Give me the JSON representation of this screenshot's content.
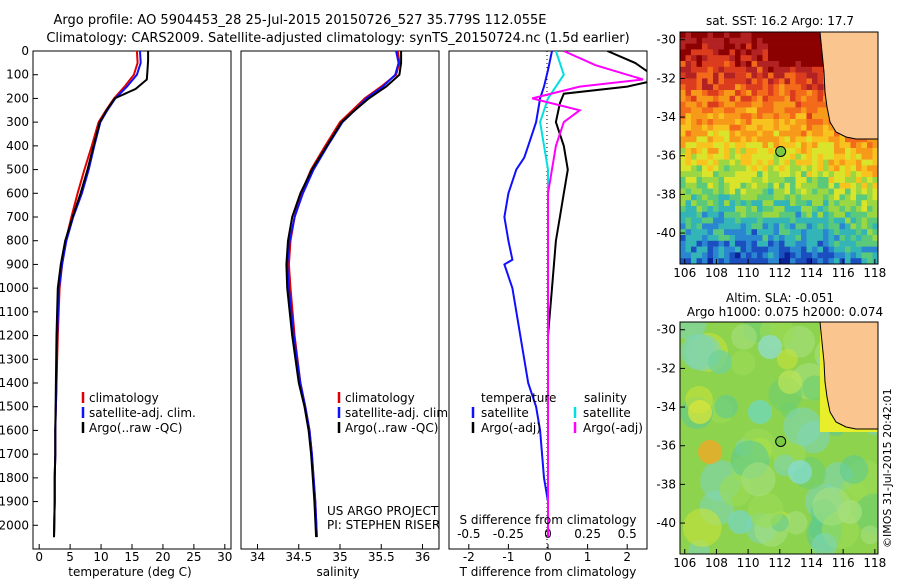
{
  "title": {
    "line1": "Argo profile: AO 5904453_28 25-Jul-2015 20150726_527 35.779S 112.055E",
    "line2": "Climatology: CARS2009. Satellite-adjusted climatology: synTS_20150724.nc (1.5d earlier)"
  },
  "chart_data": [
    {
      "type": "line",
      "xlabel": "temperature (deg C)",
      "ylabel": "",
      "xlim": [
        -1,
        31
      ],
      "ylim": [
        0,
        2100
      ],
      "y_reversed": true,
      "xticks": [
        "0",
        "5",
        "10",
        "15",
        "20",
        "25",
        "30"
      ],
      "yticks": [
        "0",
        "100",
        "200",
        "300",
        "400",
        "500",
        "600",
        "700",
        "800",
        "900",
        "1000",
        "1100",
        "1200",
        "1300",
        "1400",
        "1500",
        "1600",
        "1700",
        "1800",
        "1900",
        "2000"
      ],
      "legend": {
        "position": "lower-center",
        "entries": [
          "climatology",
          "satellite-adj. clim.",
          "Argo(..raw -QC)"
        ]
      },
      "series": [
        {
          "name": "climatology",
          "color": "#e00000",
          "x": [
            15.8,
            15.9,
            15.3,
            13.8,
            12.1,
            10.8,
            9.6,
            8.5,
            7.3,
            6.2,
            5.2,
            4.3,
            3.7,
            3.3,
            3.0,
            2.8,
            2.7,
            2.6,
            2.6,
            2.5,
            2.5,
            2.4
          ],
          "y": [
            0,
            50,
            100,
            150,
            200,
            250,
            300,
            400,
            500,
            600,
            700,
            800,
            900,
            1000,
            1200,
            1400,
            1500,
            1600,
            1700,
            1800,
            1900,
            2050
          ]
        },
        {
          "name": "satellite-adj. clim.",
          "color": "#1010ff",
          "x": [
            16.3,
            16.4,
            15.8,
            14.2,
            12.3,
            11.0,
            9.9,
            8.9,
            8.0,
            6.9,
            5.5,
            4.4,
            3.7,
            3.2,
            2.9,
            2.8,
            2.7,
            2.6,
            2.6,
            2.5,
            2.5,
            2.4
          ],
          "y": [
            0,
            50,
            100,
            150,
            200,
            250,
            300,
            400,
            500,
            600,
            700,
            800,
            900,
            1000,
            1200,
            1400,
            1500,
            1600,
            1700,
            1800,
            1900,
            2050
          ]
        },
        {
          "name": "Argo(..raw -QC)",
          "color": "#000000",
          "x": [
            17.6,
            17.6,
            17.5,
            17.4,
            15.6,
            12.2,
            10.9,
            9.8,
            8.8,
            7.8,
            6.7,
            5.4,
            4.2,
            3.5,
            3.0,
            2.8,
            2.7,
            2.6,
            2.6,
            2.5,
            2.5,
            2.4
          ],
          "y": [
            0,
            40,
            80,
            120,
            160,
            200,
            250,
            300,
            400,
            500,
            600,
            700,
            800,
            900,
            1000,
            1200,
            1400,
            1600,
            1700,
            1800,
            1900,
            2050
          ]
        }
      ]
    },
    {
      "type": "line",
      "xlabel": "salinity",
      "xlim": [
        33.8,
        36.2
      ],
      "ylim": [
        0,
        2100
      ],
      "y_reversed": true,
      "xticks": [
        "34",
        "34.5",
        "35",
        "35.5",
        "36"
      ],
      "legend": {
        "position": "lower-center",
        "entries": [
          "climatology",
          "satellite-adj. clim.",
          "Argo(..raw -QC)"
        ]
      },
      "annotations": [
        "US ARGO PROJECT",
        "PI: STEPHEN RISER"
      ],
      "series": [
        {
          "name": "climatology",
          "color": "#e00000",
          "x": [
            35.7,
            35.72,
            35.68,
            35.5,
            35.3,
            35.15,
            35.0,
            34.82,
            34.65,
            34.53,
            34.45,
            34.4,
            34.38,
            34.4,
            34.45,
            34.52,
            34.58,
            34.63,
            34.66,
            34.68,
            34.7,
            34.72
          ],
          "y": [
            0,
            50,
            100,
            150,
            200,
            250,
            300,
            400,
            500,
            600,
            700,
            800,
            900,
            1000,
            1200,
            1400,
            1500,
            1600,
            1700,
            1800,
            1900,
            2050
          ]
        },
        {
          "name": "satellite-adj. clim.",
          "color": "#1010ff",
          "x": [
            35.68,
            35.71,
            35.67,
            35.52,
            35.32,
            35.18,
            35.03,
            34.85,
            34.68,
            34.55,
            34.45,
            34.39,
            34.36,
            34.38,
            34.44,
            34.52,
            34.58,
            34.63,
            34.66,
            34.68,
            34.7,
            34.72
          ],
          "y": [
            0,
            50,
            100,
            150,
            200,
            250,
            300,
            400,
            500,
            600,
            700,
            800,
            900,
            1000,
            1200,
            1400,
            1500,
            1600,
            1700,
            1800,
            1900,
            2050
          ]
        },
        {
          "name": "Argo(..raw -QC)",
          "color": "#000000",
          "x": [
            35.74,
            35.74,
            35.72,
            35.56,
            35.35,
            35.18,
            35.02,
            34.84,
            34.66,
            34.52,
            34.42,
            34.37,
            34.35,
            34.36,
            34.42,
            34.5,
            34.57,
            34.62,
            34.65,
            34.67,
            34.69,
            34.71
          ],
          "y": [
            0,
            50,
            100,
            150,
            200,
            250,
            300,
            400,
            500,
            600,
            700,
            800,
            900,
            1000,
            1200,
            1400,
            1500,
            1600,
            1700,
            1800,
            1900,
            2050
          ]
        }
      ]
    },
    {
      "type": "line",
      "xlabel": "T difference from climatology",
      "xlabel_top": "S difference from climatology",
      "xlim": [
        -2.5,
        2.5
      ],
      "ylim": [
        0,
        2100
      ],
      "y_reversed": true,
      "xticks_T": [
        "-2",
        "-1",
        "0",
        "1",
        "2"
      ],
      "xticks_S": [
        "-0.5",
        "-0.25",
        "0",
        "0.25",
        "0.5"
      ],
      "legend": {
        "position": "lower-center",
        "headers": [
          "temperature",
          "salinity"
        ],
        "entries": [
          "satellite",
          "Argo(-adj)",
          "satellite",
          "Argo(-adj)"
        ]
      },
      "series": [
        {
          "name": "satellite",
          "group": "temperature",
          "color": "#1010ff",
          "x": [
            0.1,
            0.0,
            -0.1,
            -0.2,
            -0.3,
            -0.5,
            -0.6,
            -0.8,
            -1.0,
            -1.1,
            -1.0,
            -0.9,
            -1.1,
            -0.9,
            -0.7,
            -0.5,
            -0.3,
            -0.2,
            -0.1,
            0.0,
            0.0
          ],
          "y": [
            0,
            80,
            150,
            200,
            300,
            400,
            450,
            500,
            600,
            700,
            800,
            880,
            900,
            1000,
            1200,
            1400,
            1500,
            1600,
            1800,
            1900,
            2050
          ]
        },
        {
          "name": "Argo(-adj)",
          "group": "temperature",
          "color": "#000000",
          "x": [
            1.5,
            2.2,
            2.8,
            2.0,
            0.4,
            0.3,
            0.2,
            0.4,
            0.5,
            0.4,
            0.3,
            0.2,
            0.1,
            0.0,
            0.0,
            0.0,
            0.0
          ],
          "y": [
            0,
            50,
            120,
            150,
            180,
            220,
            300,
            400,
            500,
            600,
            700,
            800,
            1000,
            1200,
            1500,
            1800,
            2050
          ]
        },
        {
          "name": "satellite",
          "group": "salinity",
          "color": "#00e0e0",
          "x": [
            0.05,
            0.1,
            0.0,
            -0.05,
            0.0,
            0.0,
            0.0,
            0.0,
            0.0,
            0.0,
            0.0
          ],
          "y": [
            0,
            100,
            200,
            300,
            500,
            700,
            900,
            1200,
            1500,
            1800,
            2050
          ]
        },
        {
          "name": "Argo(-adj)",
          "group": "salinity",
          "color": "#ff00ff",
          "x": [
            0.1,
            0.3,
            0.6,
            0.2,
            -0.1,
            0.2,
            0.1,
            0.05,
            0.0,
            0.0,
            0.0,
            0.0
          ],
          "y": [
            0,
            60,
            120,
            150,
            200,
            250,
            300,
            400,
            600,
            900,
            1500,
            2050
          ]
        }
      ]
    },
    {
      "type": "heatmap",
      "title": "sat. SST: 16.2  Argo: 17.7",
      "xticks": [
        "106",
        "108",
        "110",
        "112",
        "114",
        "116",
        "118"
      ],
      "yticks": [
        "-30",
        "-32",
        "-34",
        "-36",
        "-38",
        "-40"
      ],
      "marker": {
        "lon": 112.055,
        "lat": -35.779
      }
    },
    {
      "type": "heatmap",
      "title": "Altim. SLA: -0.051",
      "subtitle": "Argo h1000: 0.075 h2000: 0.074",
      "xticks": [
        "106",
        "108",
        "110",
        "112",
        "114",
        "116",
        "118"
      ],
      "yticks": [
        "-30",
        "-32",
        "-34",
        "-36",
        "-38",
        "-40"
      ],
      "marker": {
        "lon": 112.055,
        "lat": -35.779
      }
    }
  ],
  "footer": "©IMOS 31-Jul-2015 20:42:01"
}
